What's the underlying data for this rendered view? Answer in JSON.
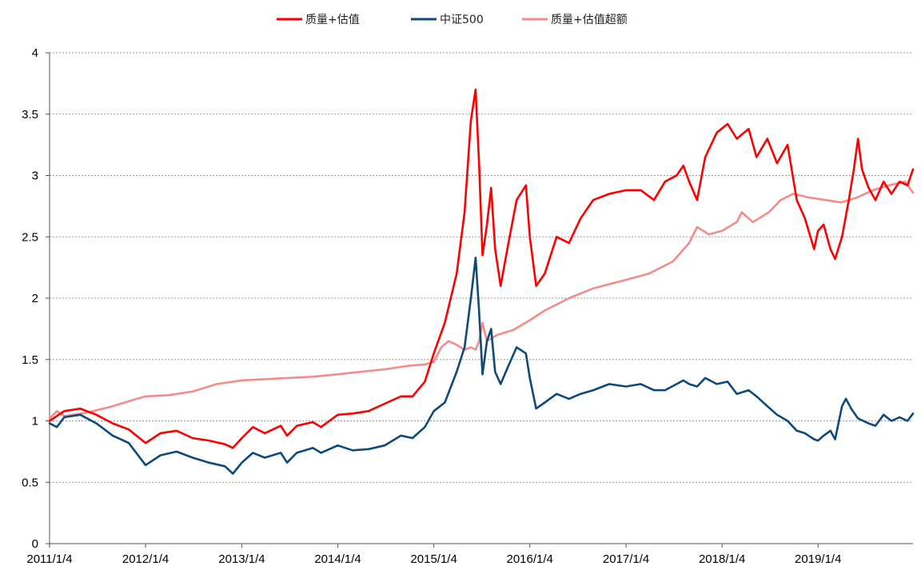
{
  "chart_data": {
    "type": "line",
    "title": "",
    "xlabel": "",
    "ylabel": "",
    "ylim": [
      0,
      4
    ],
    "yticks": [
      "0",
      "0.5",
      "1",
      "1.5",
      "2",
      "2.5",
      "3",
      "3.5",
      "4"
    ],
    "xticks": [
      "2011/1/4",
      "2012/1/4",
      "2013/1/4",
      "2014/1/4",
      "2015/1/4",
      "2016/1/4",
      "2017/1/4",
      "2018/1/4",
      "2019/1/4"
    ],
    "xlim": [
      "2011/1/4",
      "2019/12/31"
    ],
    "grid": "horizontal dotted",
    "legend_position": "top-center",
    "series": [
      {
        "name": "质量+估值",
        "color": "#ff0000",
        "points": [
          [
            "2011/1/4",
            1.0
          ],
          [
            "2011/3/1",
            1.08
          ],
          [
            "2011/5/1",
            1.1
          ],
          [
            "2011/7/1",
            1.05
          ],
          [
            "2011/9/1",
            0.98
          ],
          [
            "2011/11/1",
            0.93
          ],
          [
            "2012/1/4",
            0.82
          ],
          [
            "2012/3/1",
            0.9
          ],
          [
            "2012/5/1",
            0.92
          ],
          [
            "2012/7/1",
            0.86
          ],
          [
            "2012/9/1",
            0.84
          ],
          [
            "2012/11/1",
            0.81
          ],
          [
            "2012/12/1",
            0.78
          ],
          [
            "2013/1/4",
            0.86
          ],
          [
            "2013/2/15",
            0.95
          ],
          [
            "2013/4/1",
            0.9
          ],
          [
            "2013/6/1",
            0.96
          ],
          [
            "2013/6/25",
            0.88
          ],
          [
            "2013/8/1",
            0.96
          ],
          [
            "2013/10/1",
            0.99
          ],
          [
            "2013/11/1",
            0.95
          ],
          [
            "2014/1/4",
            1.05
          ],
          [
            "2014/3/1",
            1.06
          ],
          [
            "2014/5/1",
            1.08
          ],
          [
            "2014/7/1",
            1.14
          ],
          [
            "2014/9/1",
            1.2
          ],
          [
            "2014/10/15",
            1.2
          ],
          [
            "2014/12/1",
            1.32
          ],
          [
            "2015/1/4",
            1.55
          ],
          [
            "2015/2/15",
            1.8
          ],
          [
            "2015/4/1",
            2.2
          ],
          [
            "2015/5/1",
            2.7
          ],
          [
            "2015/5/25",
            3.45
          ],
          [
            "2015/6/12",
            3.7
          ],
          [
            "2015/6/25",
            3.1
          ],
          [
            "2015/7/8",
            2.35
          ],
          [
            "2015/7/25",
            2.6
          ],
          [
            "2015/8/10",
            2.9
          ],
          [
            "2015/8/25",
            2.4
          ],
          [
            "2015/9/15",
            2.1
          ],
          [
            "2015/10/15",
            2.45
          ],
          [
            "2015/11/15",
            2.8
          ],
          [
            "2015/12/20",
            2.92
          ],
          [
            "2016/1/4",
            2.5
          ],
          [
            "2016/1/28",
            2.1
          ],
          [
            "2016/3/1",
            2.2
          ],
          [
            "2016/4/15",
            2.5
          ],
          [
            "2016/6/1",
            2.45
          ],
          [
            "2016/7/15",
            2.65
          ],
          [
            "2016/9/1",
            2.8
          ],
          [
            "2016/11/1",
            2.85
          ],
          [
            "2017/1/4",
            2.88
          ],
          [
            "2017/3/1",
            2.88
          ],
          [
            "2017/4/20",
            2.8
          ],
          [
            "2017/6/1",
            2.95
          ],
          [
            "2017/7/15",
            3.0
          ],
          [
            "2017/8/10",
            3.08
          ],
          [
            "2017/9/1",
            2.95
          ],
          [
            "2017/10/1",
            2.8
          ],
          [
            "2017/11/1",
            3.15
          ],
          [
            "2017/12/15",
            3.35
          ],
          [
            "2018/1/25",
            3.42
          ],
          [
            "2018/3/1",
            3.3
          ],
          [
            "2018/4/15",
            3.38
          ],
          [
            "2018/5/15",
            3.15
          ],
          [
            "2018/6/25",
            3.3
          ],
          [
            "2018/8/1",
            3.1
          ],
          [
            "2018/9/10",
            3.25
          ],
          [
            "2018/10/15",
            2.8
          ],
          [
            "2018/11/15",
            2.65
          ],
          [
            "2018/12/20",
            2.4
          ],
          [
            "2019/1/4",
            2.55
          ],
          [
            "2019/1/25",
            2.6
          ],
          [
            "2019/2/20",
            2.4
          ],
          [
            "2019/3/10",
            2.32
          ],
          [
            "2019/4/5",
            2.5
          ],
          [
            "2019/5/1",
            2.8
          ],
          [
            "2019/5/20",
            3.05
          ],
          [
            "2019/6/5",
            3.3
          ],
          [
            "2019/6/20",
            3.05
          ],
          [
            "2019/7/15",
            2.9
          ],
          [
            "2019/8/10",
            2.8
          ],
          [
            "2019/9/10",
            2.95
          ],
          [
            "2019/10/10",
            2.85
          ],
          [
            "2019/11/10",
            2.95
          ],
          [
            "2019/12/10",
            2.92
          ],
          [
            "2019/12/31",
            3.05
          ]
        ]
      },
      {
        "name": "中证500",
        "color": "#0d4a7a",
        "points": [
          [
            "2011/1/4",
            0.98
          ],
          [
            "2011/2/1",
            0.95
          ],
          [
            "2011/3/1",
            1.03
          ],
          [
            "2011/5/1",
            1.05
          ],
          [
            "2011/7/1",
            0.98
          ],
          [
            "2011/9/1",
            0.88
          ],
          [
            "2011/11/1",
            0.82
          ],
          [
            "2012/1/4",
            0.64
          ],
          [
            "2012/3/1",
            0.72
          ],
          [
            "2012/5/1",
            0.75
          ],
          [
            "2012/7/1",
            0.7
          ],
          [
            "2012/9/1",
            0.66
          ],
          [
            "2012/11/1",
            0.63
          ],
          [
            "2012/12/1",
            0.57
          ],
          [
            "2013/1/4",
            0.66
          ],
          [
            "2013/2/15",
            0.74
          ],
          [
            "2013/4/1",
            0.7
          ],
          [
            "2013/6/1",
            0.74
          ],
          [
            "2013/6/25",
            0.66
          ],
          [
            "2013/8/1",
            0.74
          ],
          [
            "2013/10/1",
            0.78
          ],
          [
            "2013/11/1",
            0.74
          ],
          [
            "2014/1/4",
            0.8
          ],
          [
            "2014/3/1",
            0.76
          ],
          [
            "2014/5/1",
            0.77
          ],
          [
            "2014/7/1",
            0.8
          ],
          [
            "2014/9/1",
            0.88
          ],
          [
            "2014/10/15",
            0.86
          ],
          [
            "2014/12/1",
            0.95
          ],
          [
            "2015/1/4",
            1.08
          ],
          [
            "2015/2/15",
            1.15
          ],
          [
            "2015/4/1",
            1.4
          ],
          [
            "2015/5/1",
            1.6
          ],
          [
            "2015/5/25",
            2.0
          ],
          [
            "2015/6/12",
            2.33
          ],
          [
            "2015/6/25",
            1.9
          ],
          [
            "2015/7/8",
            1.38
          ],
          [
            "2015/7/25",
            1.65
          ],
          [
            "2015/8/10",
            1.75
          ],
          [
            "2015/8/25",
            1.4
          ],
          [
            "2015/9/15",
            1.3
          ],
          [
            "2015/10/15",
            1.45
          ],
          [
            "2015/11/15",
            1.6
          ],
          [
            "2015/12/20",
            1.55
          ],
          [
            "2016/1/4",
            1.35
          ],
          [
            "2016/1/28",
            1.1
          ],
          [
            "2016/3/1",
            1.15
          ],
          [
            "2016/4/15",
            1.22
          ],
          [
            "2016/6/1",
            1.18
          ],
          [
            "2016/7/15",
            1.22
          ],
          [
            "2016/9/1",
            1.25
          ],
          [
            "2016/11/1",
            1.3
          ],
          [
            "2017/1/4",
            1.28
          ],
          [
            "2017/3/1",
            1.3
          ],
          [
            "2017/4/20",
            1.25
          ],
          [
            "2017/6/1",
            1.25
          ],
          [
            "2017/7/15",
            1.3
          ],
          [
            "2017/8/10",
            1.33
          ],
          [
            "2017/9/1",
            1.3
          ],
          [
            "2017/10/1",
            1.28
          ],
          [
            "2017/11/1",
            1.35
          ],
          [
            "2017/12/15",
            1.3
          ],
          [
            "2018/1/25",
            1.32
          ],
          [
            "2018/3/1",
            1.22
          ],
          [
            "2018/4/15",
            1.25
          ],
          [
            "2018/5/15",
            1.2
          ],
          [
            "2018/6/25",
            1.12
          ],
          [
            "2018/8/1",
            1.05
          ],
          [
            "2018/9/10",
            1.0
          ],
          [
            "2018/10/15",
            0.92
          ],
          [
            "2018/11/15",
            0.9
          ],
          [
            "2018/12/20",
            0.85
          ],
          [
            "2019/1/4",
            0.84
          ],
          [
            "2019/1/25",
            0.88
          ],
          [
            "2019/2/20",
            0.92
          ],
          [
            "2019/3/10",
            0.85
          ],
          [
            "2019/4/5",
            1.12
          ],
          [
            "2019/4/20",
            1.18
          ],
          [
            "2019/5/10",
            1.1
          ],
          [
            "2019/6/5",
            1.02
          ],
          [
            "2019/7/15",
            0.98
          ],
          [
            "2019/8/10",
            0.96
          ],
          [
            "2019/9/10",
            1.05
          ],
          [
            "2019/10/10",
            1.0
          ],
          [
            "2019/11/10",
            1.03
          ],
          [
            "2019/12/10",
            1.0
          ],
          [
            "2019/12/31",
            1.06
          ]
        ]
      },
      {
        "name": "质量+估值超额",
        "color": "#f58c8c",
        "points": [
          [
            "2011/1/4",
            1.02
          ],
          [
            "2011/2/1",
            1.08
          ],
          [
            "2011/3/1",
            1.04
          ],
          [
            "2011/6/1",
            1.07
          ],
          [
            "2011/9/1",
            1.12
          ],
          [
            "2011/11/1",
            1.16
          ],
          [
            "2012/1/4",
            1.2
          ],
          [
            "2012/4/1",
            1.21
          ],
          [
            "2012/7/1",
            1.24
          ],
          [
            "2012/10/1",
            1.3
          ],
          [
            "2013/1/4",
            1.33
          ],
          [
            "2013/4/1",
            1.34
          ],
          [
            "2013/7/1",
            1.35
          ],
          [
            "2013/10/1",
            1.36
          ],
          [
            "2014/1/4",
            1.38
          ],
          [
            "2014/4/1",
            1.4
          ],
          [
            "2014/7/1",
            1.42
          ],
          [
            "2014/10/1",
            1.45
          ],
          [
            "2014/12/1",
            1.46
          ],
          [
            "2015/1/4",
            1.48
          ],
          [
            "2015/2/1",
            1.6
          ],
          [
            "2015/3/1",
            1.65
          ],
          [
            "2015/4/1",
            1.62
          ],
          [
            "2015/5/1",
            1.58
          ],
          [
            "2015/5/25",
            1.6
          ],
          [
            "2015/6/12",
            1.58
          ],
          [
            "2015/6/25",
            1.65
          ],
          [
            "2015/7/8",
            1.8
          ],
          [
            "2015/7/25",
            1.65
          ],
          [
            "2015/9/1",
            1.7
          ],
          [
            "2015/11/1",
            1.74
          ],
          [
            "2016/1/4",
            1.82
          ],
          [
            "2016/3/1",
            1.9
          ],
          [
            "2016/6/1",
            2.0
          ],
          [
            "2016/9/1",
            2.08
          ],
          [
            "2017/1/4",
            2.15
          ],
          [
            "2017/4/1",
            2.2
          ],
          [
            "2017/7/1",
            2.3
          ],
          [
            "2017/9/1",
            2.45
          ],
          [
            "2017/10/1",
            2.58
          ],
          [
            "2017/11/15",
            2.52
          ],
          [
            "2018/1/4",
            2.55
          ],
          [
            "2018/3/1",
            2.62
          ],
          [
            "2018/3/20",
            2.7
          ],
          [
            "2018/5/1",
            2.62
          ],
          [
            "2018/7/1",
            2.7
          ],
          [
            "2018/8/15",
            2.8
          ],
          [
            "2018/10/1",
            2.85
          ],
          [
            "2018/12/1",
            2.82
          ],
          [
            "2019/2/1",
            2.8
          ],
          [
            "2019/4/1",
            2.78
          ],
          [
            "2019/6/1",
            2.82
          ],
          [
            "2019/8/1",
            2.88
          ],
          [
            "2019/10/1",
            2.92
          ],
          [
            "2019/12/1",
            2.95
          ],
          [
            "2019/12/31",
            2.86
          ]
        ]
      }
    ]
  }
}
